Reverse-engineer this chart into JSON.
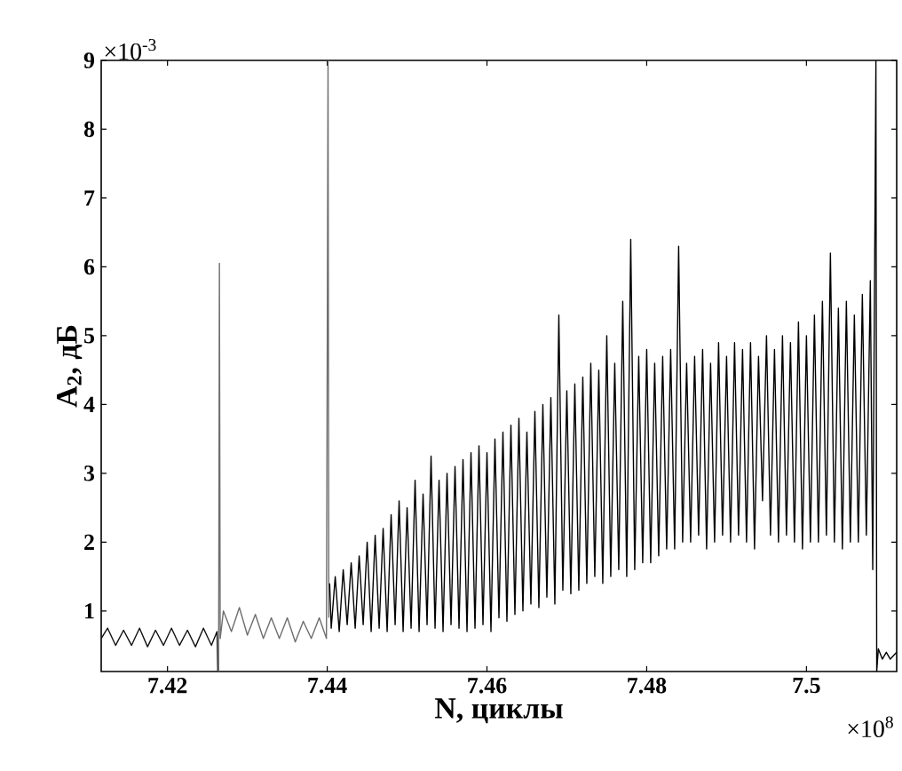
{
  "chart_data": {
    "type": "line",
    "xlabel": "N, циклы",
    "ylabel": "A$_{2}$, дБ",
    "annotations": [
      "×10$^{-3}$",
      "×10$^{8}$"
    ],
    "xlim": [
      7.4117,
      7.5113
    ],
    "ylim": [
      0.12,
      9
    ],
    "xticks": [
      7.42,
      7.44,
      7.46,
      7.48,
      7.5
    ],
    "yticks": [
      1,
      2,
      3,
      4,
      5,
      6,
      7,
      8,
      9
    ],
    "grid": false,
    "series": [
      {
        "color": "#111111",
        "x": [
          7.4117,
          7.4125,
          7.4135,
          7.4145,
          7.4155,
          7.4165,
          7.4175,
          7.4185,
          7.4195,
          7.4205,
          7.4215,
          7.4225,
          7.4235,
          7.4245,
          7.4255,
          7.4262,
          7.4263
        ],
        "values": [
          0.6,
          0.75,
          0.5,
          0.72,
          0.5,
          0.75,
          0.48,
          0.72,
          0.5,
          0.75,
          0.5,
          0.72,
          0.48,
          0.75,
          0.5,
          0.7,
          0.12
        ]
      },
      {
        "color": "#6e6e6e",
        "x": [
          7.4264,
          7.4265,
          7.4266,
          7.427,
          7.428,
          7.429,
          7.43,
          7.431,
          7.432,
          7.433,
          7.434,
          7.435,
          7.436,
          7.437,
          7.438,
          7.439,
          7.4399,
          7.4401,
          7.4402
        ],
        "values": [
          0.12,
          6.05,
          0.6,
          1.0,
          0.7,
          1.05,
          0.65,
          0.95,
          0.6,
          0.9,
          0.6,
          0.9,
          0.55,
          0.85,
          0.6,
          0.9,
          0.6,
          9.0,
          0.9
        ]
      },
      {
        "color": "#000000",
        "x": [
          7.4403,
          7.4405,
          7.441,
          7.4415,
          7.442,
          7.4425,
          7.443,
          7.4435,
          7.444,
          7.4445,
          7.445,
          7.4455,
          7.446,
          7.4465,
          7.447,
          7.4475,
          7.448,
          7.4485,
          7.449,
          7.4495,
          7.45,
          7.4505,
          7.451,
          7.4515,
          7.452,
          7.4525,
          7.453,
          7.4535,
          7.454,
          7.4545,
          7.455,
          7.4555,
          7.456,
          7.4565,
          7.457,
          7.4575,
          7.458,
          7.4585,
          7.459,
          7.4595,
          7.46,
          7.4605,
          7.461,
          7.4615,
          7.462,
          7.4625,
          7.463,
          7.4635,
          7.464,
          7.4645,
          7.465,
          7.4655,
          7.466,
          7.4665,
          7.467,
          7.4675,
          7.468,
          7.4685,
          7.469,
          7.4695,
          7.47,
          7.4705,
          7.471,
          7.4715,
          7.472,
          7.4725,
          7.473,
          7.4735,
          7.474,
          7.4745,
          7.475,
          7.4755,
          7.476,
          7.4765,
          7.477,
          7.4775,
          7.478,
          7.4785,
          7.479,
          7.4795,
          7.48,
          7.4805,
          7.481,
          7.4815,
          7.482,
          7.4825,
          7.483,
          7.4835,
          7.484,
          7.4845,
          7.485,
          7.4855,
          7.486,
          7.4865,
          7.487,
          7.4875,
          7.488,
          7.4885,
          7.489,
          7.4895,
          7.49,
          7.4905,
          7.491,
          7.4915,
          7.492,
          7.4925,
          7.493,
          7.4935,
          7.494,
          7.4945,
          7.495,
          7.4955,
          7.496,
          7.4965,
          7.497,
          7.4975,
          7.498,
          7.4985,
          7.499,
          7.4995,
          7.5,
          7.5005,
          7.501,
          7.5015,
          7.502,
          7.5025,
          7.503,
          7.5035,
          7.504,
          7.5045,
          7.505,
          7.5055,
          7.506,
          7.5065,
          7.507,
          7.5075,
          7.508,
          7.5083,
          7.5086,
          7.5087,
          7.5088,
          7.509,
          7.5095,
          7.51,
          7.5105,
          7.5113
        ],
        "values": [
          1.4,
          0.75,
          1.5,
          0.7,
          1.6,
          0.8,
          1.7,
          0.75,
          1.8,
          0.8,
          2.0,
          0.7,
          2.1,
          0.75,
          2.2,
          0.7,
          2.4,
          0.8,
          2.6,
          0.7,
          2.5,
          0.75,
          2.9,
          0.7,
          2.7,
          0.8,
          3.25,
          0.75,
          2.9,
          0.7,
          3.0,
          0.8,
          3.1,
          0.75,
          3.2,
          0.7,
          3.3,
          0.75,
          3.4,
          0.8,
          3.3,
          0.7,
          3.5,
          0.9,
          3.6,
          0.85,
          3.7,
          0.95,
          3.8,
          1.0,
          3.6,
          1.1,
          3.9,
          1.05,
          4.0,
          1.2,
          4.1,
          1.1,
          5.3,
          1.3,
          4.2,
          1.25,
          4.3,
          1.3,
          4.4,
          1.4,
          4.6,
          1.5,
          4.5,
          1.4,
          5.0,
          1.5,
          4.6,
          1.6,
          5.5,
          1.5,
          6.4,
          1.6,
          4.7,
          1.7,
          4.8,
          1.7,
          4.6,
          1.8,
          4.7,
          1.9,
          4.8,
          1.9,
          6.3,
          2.0,
          4.6,
          2.0,
          4.7,
          2.1,
          4.8,
          1.9,
          4.6,
          2.0,
          4.9,
          2.1,
          4.7,
          2.0,
          4.9,
          2.1,
          4.8,
          2.0,
          4.9,
          1.9,
          4.7,
          2.6,
          5.0,
          2.1,
          4.8,
          2.0,
          5.0,
          2.1,
          4.9,
          2.0,
          5.2,
          1.9,
          5.0,
          2.0,
          5.3,
          2.0,
          5.5,
          2.1,
          6.2,
          2.0,
          5.4,
          1.9,
          5.5,
          2.0,
          5.3,
          2.0,
          5.6,
          2.1,
          5.8,
          1.6,
          7.1,
          9.0,
          0.12,
          0.45,
          0.3,
          0.4,
          0.3,
          0.4
        ]
      }
    ]
  }
}
